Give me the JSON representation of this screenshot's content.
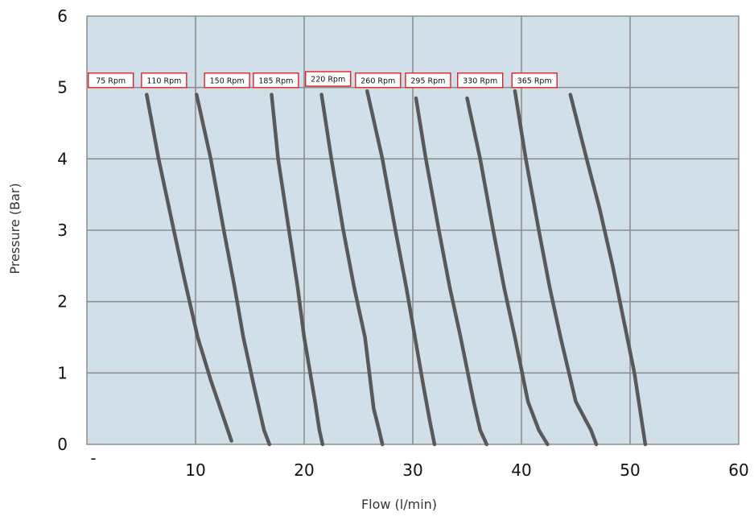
{
  "chart_data": {
    "type": "line",
    "xlabel": "Flow (l/min)",
    "ylabel": "Pressure (Bar)",
    "xlim": [
      0,
      60
    ],
    "ylim": [
      0,
      6
    ],
    "x_ticks": [
      {
        "value": 0,
        "label": "-"
      },
      {
        "value": 10,
        "label": "10"
      },
      {
        "value": 20,
        "label": "20"
      },
      {
        "value": 30,
        "label": "30"
      },
      {
        "value": 40,
        "label": "40"
      },
      {
        "value": 50,
        "label": "50"
      },
      {
        "value": 60,
        "label": "60"
      }
    ],
    "y_ticks": [
      {
        "value": 0,
        "label": "0"
      },
      {
        "value": 1,
        "label": "1"
      },
      {
        "value": 2,
        "label": "2"
      },
      {
        "value": 3,
        "label": "3"
      },
      {
        "value": 4,
        "label": "4"
      },
      {
        "value": 5,
        "label": "5"
      },
      {
        "value": 6,
        "label": "6"
      }
    ],
    "grid": true,
    "colors": {
      "plot_bg": "#d1dfe9",
      "grid": "#8e8e8e",
      "line": "#595959",
      "label_border": "#dd2222",
      "label_bg": "#ffffff",
      "text": "#111111"
    },
    "series": [
      {
        "name": "75 Rpm",
        "label_x": 2.2,
        "label_y": 5.1,
        "points": [
          [
            5.5,
            4.9
          ],
          [
            6.6,
            4.0
          ],
          [
            8.0,
            3.0
          ],
          [
            9.0,
            2.3
          ],
          [
            10.2,
            1.5
          ],
          [
            11.4,
            0.9
          ],
          [
            13.3,
            0.05
          ]
        ]
      },
      {
        "name": "110 Rpm",
        "label_x": 7.1,
        "label_y": 5.1,
        "points": [
          [
            10.1,
            4.9
          ],
          [
            11.4,
            4.0
          ],
          [
            12.6,
            3.0
          ],
          [
            13.6,
            2.2
          ],
          [
            14.4,
            1.5
          ],
          [
            15.4,
            0.8
          ],
          [
            16.3,
            0.2
          ],
          [
            16.8,
            0.0
          ]
        ]
      },
      {
        "name": "150 Rpm",
        "label_x": 12.9,
        "label_y": 5.1,
        "points": [
          [
            17.0,
            4.9
          ],
          [
            17.6,
            4.0
          ],
          [
            18.4,
            3.2
          ],
          [
            19.4,
            2.2
          ],
          [
            20.0,
            1.5
          ],
          [
            21.0,
            0.6
          ],
          [
            21.4,
            0.2
          ],
          [
            21.7,
            0.0
          ]
        ]
      },
      {
        "name": "185 Rpm",
        "label_x": 17.4,
        "label_y": 5.1,
        "points": [
          [
            21.6,
            4.9
          ],
          [
            22.5,
            4.0
          ],
          [
            23.6,
            3.0
          ],
          [
            24.6,
            2.2
          ],
          [
            25.6,
            1.5
          ],
          [
            26.4,
            0.5
          ],
          [
            26.9,
            0.2
          ],
          [
            27.2,
            0.0
          ]
        ]
      },
      {
        "name": "220 Rpm",
        "label_x": 22.2,
        "label_y": 5.12,
        "points": [
          [
            25.8,
            4.95
          ],
          [
            27.2,
            4.0
          ],
          [
            28.4,
            3.0
          ],
          [
            29.4,
            2.2
          ],
          [
            30.2,
            1.5
          ],
          [
            31.0,
            0.8
          ],
          [
            31.6,
            0.3
          ],
          [
            32.0,
            0.0
          ]
        ]
      },
      {
        "name": "260 Rpm",
        "label_x": 26.8,
        "label_y": 5.1,
        "points": [
          [
            30.3,
            4.85
          ],
          [
            31.2,
            4.0
          ],
          [
            32.4,
            3.0
          ],
          [
            33.4,
            2.2
          ],
          [
            34.4,
            1.5
          ],
          [
            35.6,
            0.6
          ],
          [
            36.2,
            0.2
          ],
          [
            36.8,
            0.0
          ]
        ]
      },
      {
        "name": "295 Rpm",
        "label_x": 31.4,
        "label_y": 5.1,
        "points": [
          [
            35.0,
            4.85
          ],
          [
            36.2,
            4.0
          ],
          [
            37.4,
            3.0
          ],
          [
            38.4,
            2.2
          ],
          [
            39.4,
            1.5
          ],
          [
            40.6,
            0.6
          ],
          [
            41.6,
            0.2
          ],
          [
            42.4,
            0.0
          ]
        ]
      },
      {
        "name": "330 Rpm",
        "label_x": 36.2,
        "label_y": 5.1,
        "points": [
          [
            39.4,
            4.95
          ],
          [
            40.4,
            4.0
          ],
          [
            41.6,
            3.0
          ],
          [
            42.6,
            2.2
          ],
          [
            43.6,
            1.5
          ],
          [
            45.0,
            0.6
          ],
          [
            46.4,
            0.2
          ],
          [
            46.9,
            0.0
          ]
        ]
      },
      {
        "name": "365 Rpm",
        "label_x": 41.2,
        "label_y": 5.1,
        "points": [
          [
            44.5,
            4.9
          ],
          [
            46.0,
            4.0
          ],
          [
            47.2,
            3.3
          ],
          [
            48.4,
            2.5
          ],
          [
            49.6,
            1.6
          ],
          [
            50.4,
            1.0
          ],
          [
            51.0,
            0.4
          ],
          [
            51.4,
            0.0
          ]
        ]
      }
    ]
  }
}
